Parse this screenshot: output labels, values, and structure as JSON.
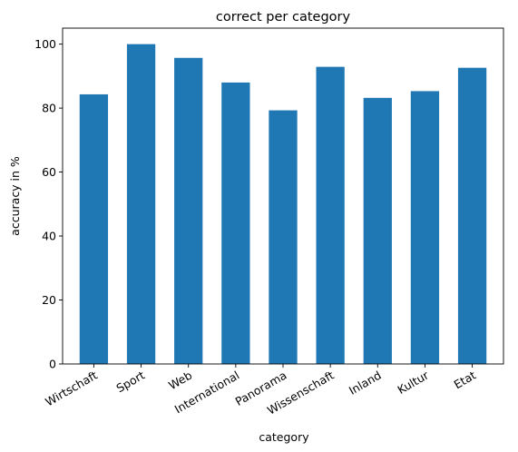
{
  "chart_data": {
    "type": "bar",
    "title": "correct per category",
    "xlabel": "category",
    "ylabel": "accuracy in %",
    "categories": [
      "Wirtschaft",
      "Sport",
      "Web",
      "International",
      "Panorama",
      "Wissenschaft",
      "Inland",
      "Kultur",
      "Etat"
    ],
    "values": [
      84.3,
      100,
      95.7,
      88.0,
      79.3,
      92.9,
      83.2,
      85.3,
      92.6
    ],
    "ylim": [
      0,
      105
    ],
    "yticks": [
      0,
      20,
      40,
      60,
      80,
      100
    ],
    "grid": false,
    "bar_color": "#1f77b4"
  }
}
